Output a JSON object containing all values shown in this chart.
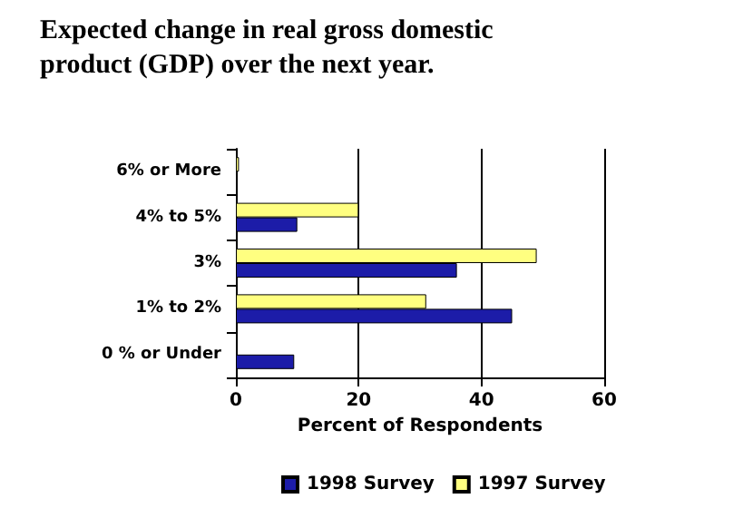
{
  "chart_data": {
    "type": "bar",
    "orientation": "horizontal",
    "title": "Expected change in real gross domestic product (GDP) over the next year.",
    "xlabel": "Percent of Respondents",
    "categories": [
      "6% or More",
      "4% to 5%",
      "3%",
      "1% to 2%",
      "0 % or Under"
    ],
    "series": [
      {
        "name": "1997 Survey",
        "color": "#ffff80",
        "values": [
          0.5,
          20,
          49,
          31,
          null
        ]
      },
      {
        "name": "1998 Survey",
        "color": "#1c1ca8",
        "values": [
          null,
          10,
          36,
          45,
          9.5
        ]
      }
    ],
    "xlim": [
      0,
      60
    ],
    "xticks": [
      0,
      20,
      40,
      60
    ],
    "grid": "x",
    "legend": "bottom"
  }
}
